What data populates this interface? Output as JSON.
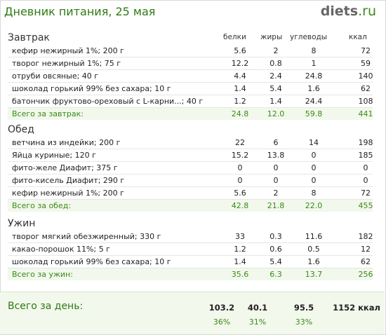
{
  "header": {
    "title": "Дневник питания, 25 мая",
    "logo_main": "diets",
    "logo_suffix": ".ru"
  },
  "columns": {
    "protein": "белки",
    "fat": "жиры",
    "carbs": "углеводы",
    "kcal": "ккал"
  },
  "meals": [
    {
      "name": "Завтрак",
      "items": [
        [
          "кефир нежирный 1%; 200 г",
          "5.6",
          "2",
          "8",
          "72"
        ],
        [
          "творог нежирный 1%; 75 г",
          "12.2",
          "0.8",
          "1",
          "59"
        ],
        [
          "отруби овсяные; 40 г",
          "4.4",
          "2.4",
          "24.8",
          "140"
        ],
        [
          "шоколад горький 99% без сахара; 10 г",
          "1.4",
          "5.4",
          "1.6",
          "62"
        ],
        [
          "батончик фруктово-ореховый с L-карни...; 40 г",
          "1.2",
          "1.4",
          "24.4",
          "108"
        ]
      ],
      "total": [
        "Всего за завтрак:",
        "24.8",
        "12.0",
        "59.8",
        "441"
      ]
    },
    {
      "name": "Обед",
      "items": [
        [
          "ветчина из индейки; 200 г",
          "22",
          "6",
          "14",
          "198"
        ],
        [
          "Яйца куриные; 120 г",
          "15.2",
          "13.8",
          "0",
          "185"
        ],
        [
          "фито-желе Диафит; 375 г",
          "0",
          "0",
          "0",
          "0"
        ],
        [
          "фито-кисель Диафит; 290 г",
          "0",
          "0",
          "0",
          "0"
        ],
        [
          "кефир нежирный 1%; 200 г",
          "5.6",
          "2",
          "8",
          "72"
        ]
      ],
      "total": [
        "Всего за обед:",
        "42.8",
        "21.8",
        "22.0",
        "455"
      ]
    },
    {
      "name": "Ужин",
      "items": [
        [
          "творог мягкий обезжиренный; 330 г",
          "33",
          "0.3",
          "11.6",
          "182"
        ],
        [
          "какао-порошок 11%; 5 г",
          "1.2",
          "0.6",
          "0.5",
          "12"
        ],
        [
          "шоколад горький 99% без сахара; 10 г",
          "1.4",
          "5.4",
          "1.6",
          "62"
        ]
      ],
      "total": [
        "Всего за ужин:",
        "35.6",
        "6.3",
        "13.7",
        "256"
      ]
    }
  ],
  "day_total": {
    "label": "Всего за день:",
    "protein": "103.2",
    "fat": "40.1",
    "carbs": "95.5",
    "kcal": "1152 ккал",
    "protein_pct": "36%",
    "fat_pct": "31%",
    "carbs_pct": "33%"
  }
}
